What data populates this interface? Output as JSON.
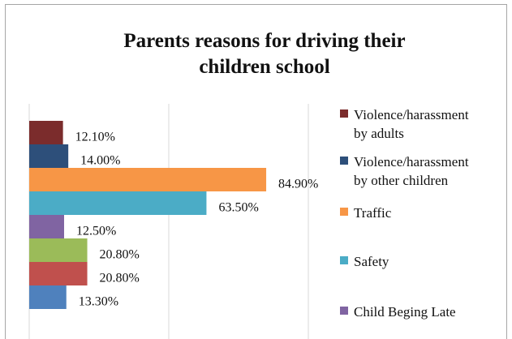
{
  "chart_data": {
    "type": "bar",
    "orientation": "horizontal",
    "title_lines": [
      "Parents reasons for driving their",
      "children school"
    ],
    "xlabel": "",
    "ylabel": "",
    "xlim": [
      0,
      100
    ],
    "grid": true,
    "legend_position": "right",
    "series": [
      {
        "name": "Violence/harassment by adults",
        "legend_lines": [
          "Violence/harassment",
          "by adults"
        ],
        "value": 12.1,
        "label": "12.10%",
        "color": "#7b2c2c"
      },
      {
        "name": "Violence/harassment by other children",
        "legend_lines": [
          "Violence/harassment",
          "by other children"
        ],
        "value": 14.0,
        "label": "14.00%",
        "color": "#2d4f7a"
      },
      {
        "name": "Traffic",
        "legend_lines": [
          "Traffic"
        ],
        "value": 84.9,
        "label": "84.90%",
        "color": "#f79646"
      },
      {
        "name": "Safety",
        "legend_lines": [
          "Safety"
        ],
        "value": 63.5,
        "label": "63.50%",
        "color": "#4bacc6"
      },
      {
        "name": "Child Beging Late",
        "legend_lines": [
          "Child Beging Late"
        ],
        "value": 12.5,
        "label": "12.50%",
        "color": "#8064a2"
      },
      {
        "name": "",
        "legend_lines": [],
        "value": 20.8,
        "label": "20.80%",
        "color": "#9bbb59"
      },
      {
        "name": "",
        "legend_lines": [],
        "value": 20.8,
        "label": "20.80%",
        "color": "#c0504d"
      },
      {
        "name": "",
        "legend_lines": [],
        "value": 13.3,
        "label": "13.30%",
        "color": "#4f81bd"
      }
    ]
  }
}
